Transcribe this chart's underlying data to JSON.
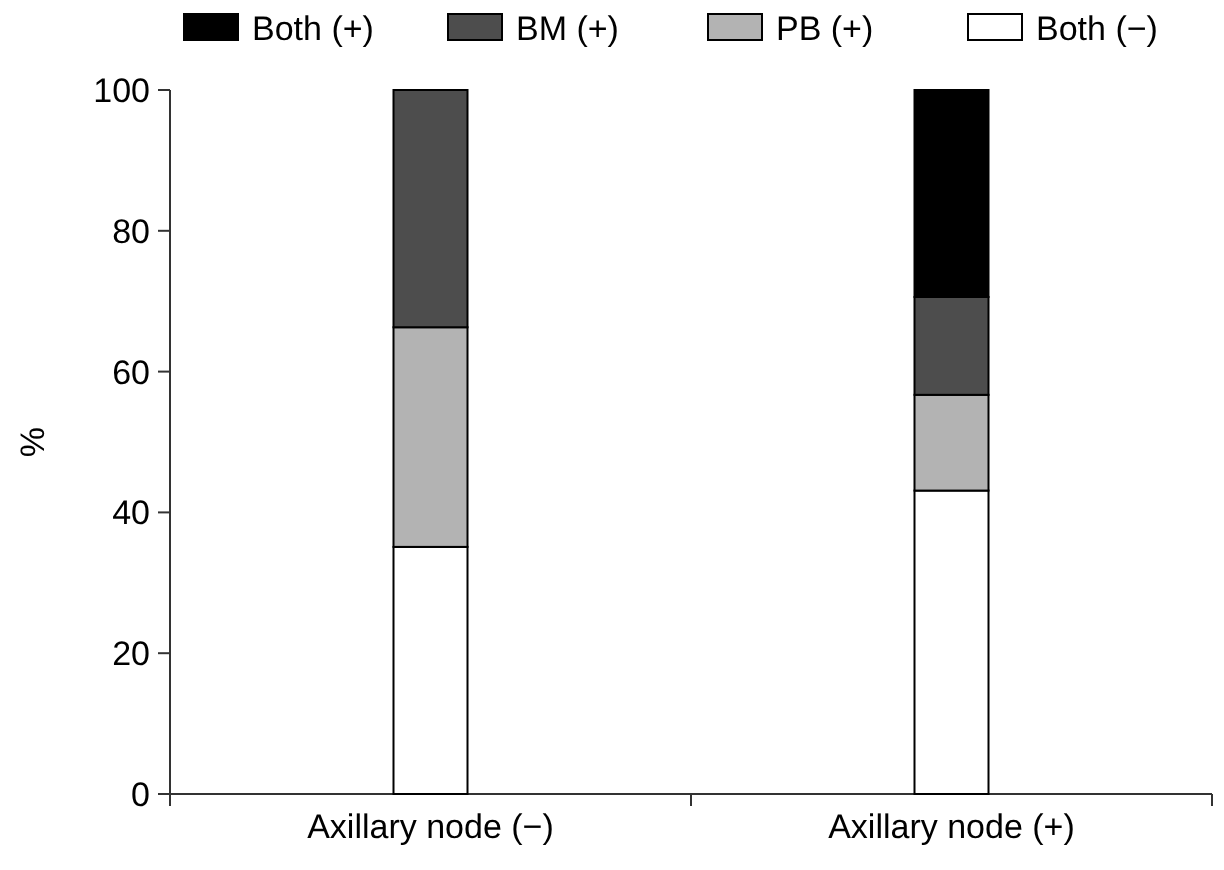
{
  "chart_data": {
    "type": "bar",
    "stacked": true,
    "ylabel": "%",
    "categories": [
      "Axillary node (−)",
      "Axillary node (+)"
    ],
    "series": [
      {
        "name": "Both (−)",
        "color": "#ffffff",
        "values": [
          35.1,
          43.1
        ]
      },
      {
        "name": "PB (+)",
        "color": "#b3b3b3",
        "values": [
          31.2,
          13.6
        ]
      },
      {
        "name": "BM (+)",
        "color": "#4d4d4d",
        "values": [
          33.7,
          13.9
        ]
      },
      {
        "name": "Both (+)",
        "color": "#000000",
        "values": [
          0,
          29.4
        ]
      }
    ],
    "ylim": [
      0,
      100
    ],
    "yticks": [
      0,
      20,
      40,
      60,
      80,
      100
    ],
    "grid": false,
    "legend": "top"
  }
}
